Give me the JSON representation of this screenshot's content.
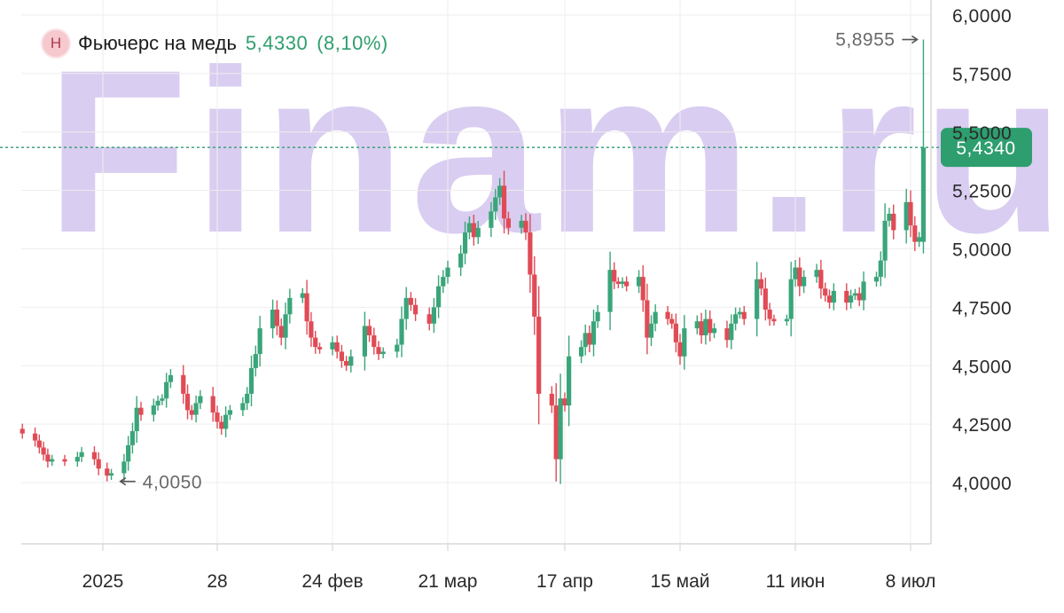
{
  "watermark": "Finam.ru",
  "legend": {
    "badge": "Н",
    "instrument": "Фьючерс на медь",
    "last": "5,4330",
    "change": "(8,10%)"
  },
  "annotations": {
    "high": "5,8955",
    "low": "4,0050",
    "current": "5,4340"
  },
  "colors": {
    "up": "#3aa57a",
    "down": "#e04b55",
    "current_line": "#2e9e6e",
    "watermark": "#d9cdf1"
  },
  "chart_data": {
    "type": "candlestick",
    "title": "Фьючерс на медь",
    "ylim": [
      3.75,
      6.1
    ],
    "yticks": [
      4.0,
      4.25,
      4.5,
      4.75,
      5.0,
      5.25,
      5.5,
      5.75,
      6.0
    ],
    "ytick_labels": [
      "4,0000",
      "4,2500",
      "4,5000",
      "4,7500",
      "5,0000",
      "5,2500",
      "5,5000",
      "5,7500",
      "6,0000"
    ],
    "xticks": [
      {
        "label": "2025",
        "date": "2025-01-01"
      },
      {
        "label": "28",
        "date": "2025-01-28"
      },
      {
        "label": "24 фев",
        "date": "2025-02-24"
      },
      {
        "label": "21 мар",
        "date": "2025-03-21"
      },
      {
        "label": "17 апр",
        "date": "2025-04-17"
      },
      {
        "label": "15 май",
        "date": "2025-05-15"
      },
      {
        "label": "11 июн",
        "date": "2025-06-11"
      },
      {
        "label": "8 июл",
        "date": "2025-07-08"
      }
    ],
    "date_range": [
      "2024-12-13",
      "2025-07-11"
    ],
    "closes": [
      [
        "2024-12-13",
        4.21
      ],
      [
        "2024-12-16",
        4.18
      ],
      [
        "2024-12-17",
        4.15
      ],
      [
        "2024-12-18",
        4.12
      ],
      [
        "2024-12-19",
        4.09
      ],
      [
        "2024-12-20",
        4.1
      ],
      [
        "2024-12-23",
        4.09
      ],
      [
        "2024-12-26",
        4.11
      ],
      [
        "2024-12-27",
        4.13
      ],
      [
        "2024-12-30",
        4.1
      ],
      [
        "2024-12-31",
        4.06
      ],
      [
        "2025-01-02",
        4.03
      ],
      [
        "2025-01-03",
        4.04
      ],
      [
        "2025-01-06",
        4.09
      ],
      [
        "2025-01-07",
        4.16
      ],
      [
        "2025-01-08",
        4.22
      ],
      [
        "2025-01-09",
        4.32
      ],
      [
        "2025-01-10",
        4.29
      ],
      [
        "2025-01-13",
        4.33
      ],
      [
        "2025-01-14",
        4.35
      ],
      [
        "2025-01-15",
        4.36
      ],
      [
        "2025-01-16",
        4.43
      ],
      [
        "2025-01-17",
        4.46
      ],
      [
        "2025-01-20",
        4.38
      ],
      [
        "2025-01-21",
        4.31
      ],
      [
        "2025-01-22",
        4.29
      ],
      [
        "2025-01-23",
        4.34
      ],
      [
        "2025-01-24",
        4.37
      ],
      [
        "2025-01-27",
        4.3
      ],
      [
        "2025-01-28",
        4.26
      ],
      [
        "2025-01-29",
        4.23
      ],
      [
        "2025-01-30",
        4.29
      ],
      [
        "2025-01-31",
        4.31
      ],
      [
        "2025-02-03",
        4.34
      ],
      [
        "2025-02-04",
        4.38
      ],
      [
        "2025-02-05",
        4.49
      ],
      [
        "2025-02-06",
        4.55
      ],
      [
        "2025-02-07",
        4.66
      ],
      [
        "2025-02-10",
        4.74
      ],
      [
        "2025-02-11",
        4.67
      ],
      [
        "2025-02-12",
        4.62
      ],
      [
        "2025-02-13",
        4.72
      ],
      [
        "2025-02-14",
        4.79
      ],
      [
        "2025-02-17",
        4.81
      ],
      [
        "2025-02-18",
        4.69
      ],
      [
        "2025-02-19",
        4.62
      ],
      [
        "2025-02-20",
        4.58
      ],
      [
        "2025-02-21",
        4.57
      ],
      [
        "2025-02-24",
        4.6
      ],
      [
        "2025-02-25",
        4.56
      ],
      [
        "2025-02-26",
        4.52
      ],
      [
        "2025-02-27",
        4.5
      ],
      [
        "2025-02-28",
        4.54
      ],
      [
        "2025-03-03",
        4.67
      ],
      [
        "2025-03-04",
        4.63
      ],
      [
        "2025-03-05",
        4.58
      ],
      [
        "2025-03-06",
        4.55
      ],
      [
        "2025-03-07",
        4.56
      ],
      [
        "2025-03-10",
        4.59
      ],
      [
        "2025-03-11",
        4.7
      ],
      [
        "2025-03-12",
        4.79
      ],
      [
        "2025-03-13",
        4.76
      ],
      [
        "2025-03-14",
        4.72
      ],
      [
        "2025-03-17",
        4.68
      ],
      [
        "2025-03-18",
        4.75
      ],
      [
        "2025-03-19",
        4.84
      ],
      [
        "2025-03-20",
        4.88
      ],
      [
        "2025-03-21",
        4.92
      ],
      [
        "2025-03-24",
        4.98
      ],
      [
        "2025-03-25",
        5.07
      ],
      [
        "2025-03-26",
        5.11
      ],
      [
        "2025-03-27",
        5.05
      ],
      [
        "2025-03-28",
        5.09
      ],
      [
        "2025-03-31",
        5.16
      ],
      [
        "2025-04-01",
        5.22
      ],
      [
        "2025-04-02",
        5.27
      ],
      [
        "2025-04-03",
        5.13
      ],
      [
        "2025-04-04",
        5.09
      ],
      [
        "2025-04-07",
        5.12
      ],
      [
        "2025-04-08",
        5.07
      ],
      [
        "2025-04-09",
        4.89
      ],
      [
        "2025-04-10",
        4.71
      ],
      [
        "2025-04-11",
        4.38
      ],
      [
        "2025-04-14",
        4.33
      ],
      [
        "2025-04-15",
        4.1
      ],
      [
        "2025-04-16",
        4.36
      ],
      [
        "2025-04-17",
        4.33
      ],
      [
        "2025-04-18",
        4.54
      ],
      [
        "2025-04-21",
        4.58
      ],
      [
        "2025-04-22",
        4.64
      ],
      [
        "2025-04-23",
        4.59
      ],
      [
        "2025-04-24",
        4.69
      ],
      [
        "2025-04-25",
        4.73
      ],
      [
        "2025-04-28",
        4.91
      ],
      [
        "2025-04-29",
        4.86
      ],
      [
        "2025-04-30",
        4.85
      ],
      [
        "2025-05-01",
        4.86
      ],
      [
        "2025-05-02",
        4.84
      ],
      [
        "2025-05-05",
        4.88
      ],
      [
        "2025-05-06",
        4.78
      ],
      [
        "2025-05-07",
        4.62
      ],
      [
        "2025-05-08",
        4.68
      ],
      [
        "2025-05-09",
        4.73
      ],
      [
        "2025-05-12",
        4.7
      ],
      [
        "2025-05-13",
        4.68
      ],
      [
        "2025-05-14",
        4.6
      ],
      [
        "2025-05-15",
        4.54
      ],
      [
        "2025-05-16",
        4.66
      ],
      [
        "2025-05-19",
        4.69
      ],
      [
        "2025-05-20",
        4.63
      ],
      [
        "2025-05-21",
        4.7
      ],
      [
        "2025-05-22",
        4.64
      ],
      [
        "2025-05-23",
        4.66
      ],
      [
        "2025-05-26",
        4.61
      ],
      [
        "2025-05-27",
        4.68
      ],
      [
        "2025-05-28",
        4.72
      ],
      [
        "2025-05-29",
        4.73
      ],
      [
        "2025-05-30",
        4.7
      ],
      [
        "2025-06-02",
        4.87
      ],
      [
        "2025-06-03",
        4.83
      ],
      [
        "2025-06-04",
        4.74
      ],
      [
        "2025-06-05",
        4.7
      ],
      [
        "2025-06-06",
        4.69
      ],
      [
        "2025-06-09",
        4.7
      ],
      [
        "2025-06-10",
        4.87
      ],
      [
        "2025-06-11",
        4.92
      ],
      [
        "2025-06-12",
        4.84
      ],
      [
        "2025-06-13",
        4.88
      ],
      [
        "2025-06-16",
        4.91
      ],
      [
        "2025-06-17",
        4.83
      ],
      [
        "2025-06-18",
        4.8
      ],
      [
        "2025-06-19",
        4.77
      ],
      [
        "2025-06-20",
        4.82
      ],
      [
        "2025-06-23",
        4.77
      ],
      [
        "2025-06-24",
        4.8
      ],
      [
        "2025-06-25",
        4.81
      ],
      [
        "2025-06-26",
        4.78
      ],
      [
        "2025-06-27",
        4.86
      ],
      [
        "2025-06-30",
        4.88
      ],
      [
        "2025-07-01",
        4.95
      ],
      [
        "2025-07-02",
        5.12
      ],
      [
        "2025-07-03",
        5.15
      ],
      [
        "2025-07-04",
        5.08
      ],
      [
        "2025-07-07",
        5.2
      ],
      [
        "2025-07-08",
        5.1
      ],
      [
        "2025-07-09",
        5.03
      ],
      [
        "2025-07-10",
        5.05
      ],
      [
        "2025-07-11",
        5.433
      ]
    ],
    "high": {
      "date": "2025-07-11",
      "value": 5.8955
    },
    "low": {
      "date": "2025-01-02",
      "value": 4.005
    },
    "current": 5.434,
    "last_close": 5.433,
    "change_pct": 8.1,
    "grid": true,
    "legend": "top-left"
  }
}
